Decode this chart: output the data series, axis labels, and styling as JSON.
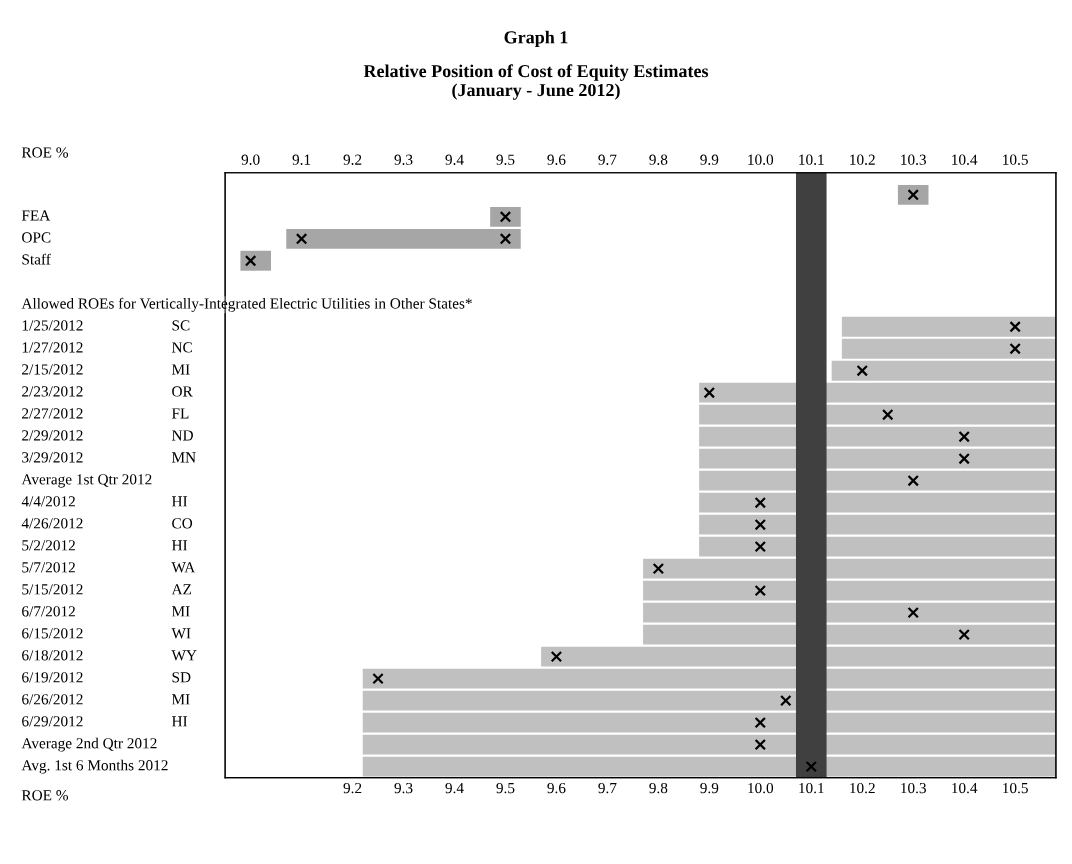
{
  "chart_data": {
    "type": "scatter",
    "orientation": "horizontal",
    "title": "Graph 1",
    "subtitle": "Relative Position of Cost of Equity Estimates\n(January - June 2012)",
    "xlabel": "ROE %",
    "x2label": "ROE %",
    "categories": [
      null,
      "FEA",
      "OPC",
      "Staff",
      null,
      "Allowed ROEs for Vertically-Integrated Electric Utilities in Other States*",
      "1/25/2012",
      "1/27/2012",
      "2/15/2012",
      "2/23/2012",
      "2/27/2012",
      "2/29/2012",
      "3/29/2012",
      "Average 1st Qtr 2012",
      "4/4/2012",
      "4/26/2012",
      "5/2/2012",
      "5/7/2012",
      "5/15/2012",
      "6/7/2012",
      "6/15/2012",
      "6/18/2012",
      "6/19/2012",
      "6/26/2012",
      "6/29/2012",
      "Average 2nd Qtr 2012",
      "Avg. 1st 6 Months 2012"
    ],
    "y2_categories": [
      null,
      null,
      null,
      null,
      null,
      null,
      "SC",
      "NC",
      "MI",
      "OR",
      "FL",
      "ND",
      "MN",
      null,
      "HI",
      "CO",
      "HI",
      "WA",
      "AZ",
      "MI",
      "WI",
      "WY",
      "SD",
      "MI",
      "HI",
      null,
      null
    ],
    "xlim": [
      8.95,
      10.58
    ],
    "xticks": [
      9.2,
      9.3,
      9.4,
      9.5,
      9.6,
      9.7,
      9.8,
      9.9,
      {
        "value": 10,
        "label": "10.0"
      },
      10.1,
      10.2,
      10.3,
      10.4,
      10.5
    ],
    "x2lim": [
      8.95,
      10.58
    ],
    "x2ticks": [
      {
        "value": 9,
        "label": "9.0"
      },
      9.1,
      9.2,
      9.3,
      9.4,
      9.5,
      9.6,
      9.7,
      9.8,
      9.9,
      {
        "value": 10,
        "label": "10.0"
      },
      10.1,
      10.2,
      10.3,
      10.4,
      10.5
    ],
    "marker": "cross",
    "grid": false,
    "legend": false,
    "bands": [
      {
        "axis": "x",
        "from": 10.07,
        "to": 10.13,
        "color": "#404040"
      }
    ],
    "series": [
      {
        "type": "bar",
        "base": [
          10.27,
          9.47,
          9.07,
          8.98,
          null,
          null,
          10.16,
          10.16,
          10.14,
          9.88,
          9.88,
          9.88,
          9.88,
          9.88,
          9.88,
          9.88,
          9.88,
          9.77,
          9.77,
          9.77,
          9.77,
          9.57,
          9.22,
          9.22,
          9.22,
          9.22,
          9.22
        ],
        "values": [
          0.06,
          0.06,
          0.46,
          0.06,
          null,
          null,
          0.42,
          0.42,
          0.44,
          0.7,
          0.7,
          0.7,
          0.7,
          0.7,
          0.7,
          0.7,
          0.7,
          0.81,
          0.81,
          0.81,
          0.81,
          1.01,
          1.36,
          1.36,
          1.36,
          1.36,
          1.36
        ],
        "colors": [
          "#a6a6a6",
          "#a6a6a6",
          "#a6a6a6",
          "#a6a6a6",
          null,
          null,
          "#c0c0c0",
          "#c0c0c0",
          "#c0c0c0",
          "#c0c0c0",
          "#c0c0c0",
          "#c0c0c0",
          "#c0c0c0",
          "#c0c0c0",
          "#c0c0c0",
          "#c0c0c0",
          "#c0c0c0",
          "#c0c0c0",
          "#c0c0c0",
          "#c0c0c0",
          "#c0c0c0",
          "#c0c0c0",
          "#c0c0c0",
          "#c0c0c0",
          "#c0c0c0",
          "#c0c0c0",
          "#c0c0c0"
        ]
      },
      {
        "color": "#000000",
        "values": [
          10.3,
          9.5,
          9.1,
          9.0,
          null,
          null,
          10.5,
          10.5,
          10.2,
          9.9,
          10.25,
          10.4,
          10.4,
          10.3,
          10.0,
          10.0,
          10.0,
          9.8,
          10.0,
          10.3,
          10.4,
          9.6,
          9.25,
          10.05,
          10.0,
          10.0,
          10.1
        ]
      },
      {
        "color": "#000000",
        "values": [
          null,
          null,
          9.5,
          null,
          null,
          null,
          null,
          null,
          null,
          null,
          null,
          null,
          null,
          null,
          null,
          null,
          null,
          null,
          null,
          null,
          null,
          null,
          null,
          null,
          null,
          null,
          null
        ]
      }
    ]
  }
}
